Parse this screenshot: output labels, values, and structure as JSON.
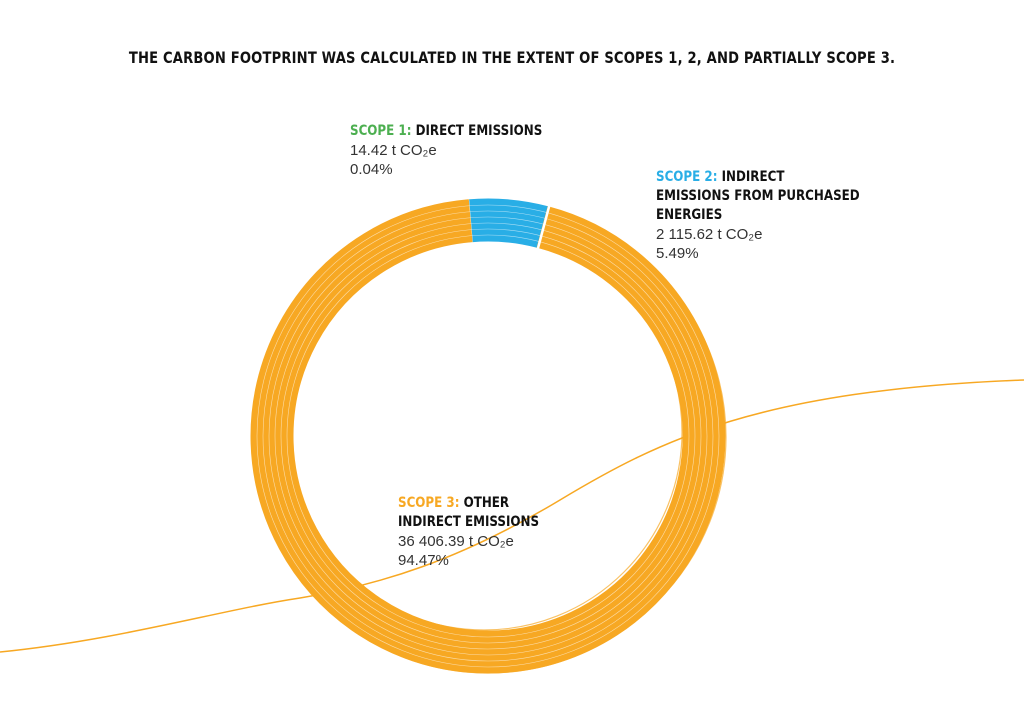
{
  "chart_data": {
    "type": "donut",
    "title": "THE CARBON FOOTPRINT WAS CALCULATED IN THE EXTENT OF SCOPES 1, 2, AND PARTIALLY SCOPE 3.",
    "scopes": [
      "SCOPE 1:",
      "SCOPE 2:",
      "SCOPE 3:"
    ],
    "categories": [
      "DIRECT EMISSIONS",
      "INDIRECT EMISSIONS FROM PURCHASED ENERGIES",
      "OTHER INDIRECT EMISSIONS"
    ],
    "values": [
      0.04,
      5.49,
      94.47
    ],
    "value_labels": [
      "0.04%",
      "5.49%",
      "94.47%"
    ],
    "emissions": [
      14.42,
      2115.62,
      36406.39
    ],
    "emission_labels": [
      "14.42 t CO₂e",
      "2 115.62 t CO₂e",
      "36 406.39 t CO₂e"
    ],
    "colors": [
      "#4caf50",
      "#29aee6",
      "#f7a823"
    ]
  }
}
